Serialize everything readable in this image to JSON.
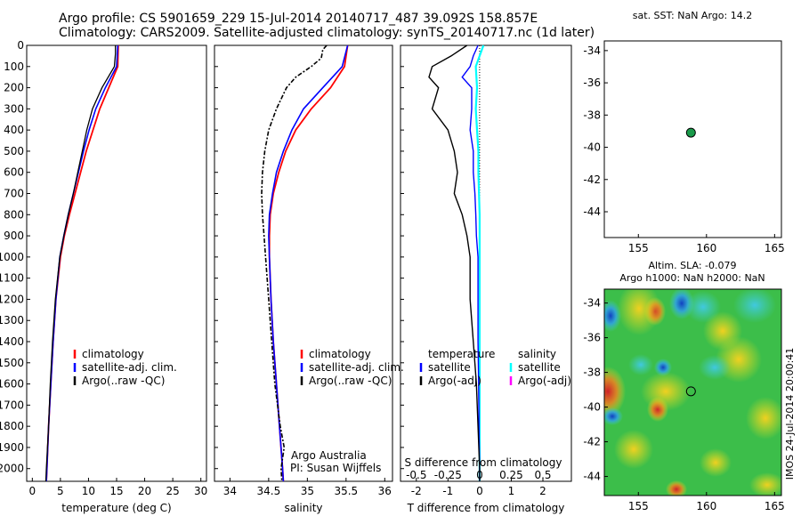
{
  "header": {
    "line1": "Argo profile: CS 5901659_229 15-Jul-2014 20140717_487 39.092S 158.857E",
    "line2": "Climatology: CARS2009. Satellite-adjusted climatology: synTS_20140717.nc (1d later)"
  },
  "colors": {
    "climatology": "#ff0000",
    "satellite": "#0000ff",
    "argo": "#000000",
    "s_satellite": "#00ffff",
    "s_argo": "#ff00ff",
    "marker": "#1a9a4a"
  },
  "chart_data": [
    {
      "type": "line",
      "xlabel": "temperature (deg C)",
      "x_ticks": [
        "0",
        "5",
        "10",
        "15",
        "20",
        "25",
        "30"
      ],
      "xlim": [
        -1,
        31
      ],
      "y_ticks": [
        "0",
        "100",
        "200",
        "300",
        "400",
        "500",
        "600",
        "700",
        "800",
        "900",
        "1000",
        "1100",
        "1200",
        "1300",
        "1400",
        "1500",
        "1600",
        "1700",
        "1800",
        "1900",
        "2000"
      ],
      "ylim": [
        0,
        2060
      ],
      "legend": [
        "climatology",
        "satellite-adj. clim.",
        "Argo(..raw -QC)"
      ],
      "series": [
        {
          "name": "climatology",
          "depth": [
            0,
            100,
            200,
            300,
            400,
            500,
            600,
            700,
            800,
            900,
            1000,
            1200,
            1400,
            1600,
            1800,
            2000,
            2060
          ],
          "values": [
            15.3,
            15.2,
            13.6,
            12.0,
            10.8,
            9.6,
            8.6,
            7.6,
            6.6,
            5.7,
            5.0,
            4.2,
            3.7,
            3.3,
            2.9,
            2.6,
            2.5
          ]
        },
        {
          "name": "satellite-adj. clim.",
          "depth": [
            0,
            100,
            200,
            300,
            400,
            500,
            600,
            700,
            800,
            900,
            1000,
            1200,
            1400,
            1600,
            1800,
            2000,
            2060
          ],
          "values": [
            15.2,
            15.0,
            13.0,
            11.3,
            10.1,
            9.1,
            8.2,
            7.3,
            6.4,
            5.6,
            4.9,
            4.2,
            3.7,
            3.3,
            2.9,
            2.6,
            2.5
          ]
        },
        {
          "name": "Argo(..raw -QC)",
          "depth": [
            0,
            40,
            100,
            200,
            300,
            400,
            500,
            600,
            700,
            800,
            900,
            1000,
            1200,
            1400,
            1600,
            1800,
            2000,
            2060
          ],
          "values": [
            14.8,
            14.8,
            14.6,
            12.4,
            10.7,
            9.7,
            8.9,
            8.1,
            7.3,
            6.4,
            5.6,
            4.9,
            4.1,
            3.6,
            3.2,
            2.9,
            2.5,
            2.4
          ]
        }
      ]
    },
    {
      "type": "line",
      "xlabel": "salinity",
      "x_ticks": [
        "34",
        "34.5",
        "35",
        "35.5",
        "36"
      ],
      "xlim": [
        33.8,
        36.1
      ],
      "ylim": [
        0,
        2060
      ],
      "legend": [
        "climatology",
        "satellite-adj. clim.",
        "Argo(..raw -QC)"
      ],
      "annotation": [
        "Argo Australia",
        "PI: Susan Wijffels"
      ],
      "series": [
        {
          "name": "climatology",
          "depth": [
            0,
            100,
            200,
            300,
            400,
            500,
            600,
            700,
            800,
            900,
            1000,
            1200,
            1400,
            1600,
            1800,
            2000,
            2060
          ],
          "values": [
            35.52,
            35.48,
            35.3,
            35.05,
            34.85,
            34.72,
            34.63,
            34.56,
            34.52,
            34.51,
            34.51,
            34.53,
            34.56,
            34.6,
            34.64,
            34.68,
            34.69
          ]
        },
        {
          "name": "satellite-adj. clim.",
          "depth": [
            0,
            100,
            200,
            300,
            400,
            500,
            600,
            700,
            800,
            900,
            1000,
            1200,
            1400,
            1600,
            1800,
            2000,
            2060
          ],
          "values": [
            35.52,
            35.45,
            35.2,
            34.95,
            34.8,
            34.69,
            34.6,
            34.55,
            34.51,
            34.5,
            34.51,
            34.53,
            34.56,
            34.6,
            34.64,
            34.68,
            34.69
          ]
        },
        {
          "name": "Argo(..raw -QC)",
          "depth": [
            0,
            20,
            60,
            100,
            150,
            200,
            300,
            400,
            500,
            600,
            700,
            800,
            900,
            1000,
            1200,
            1400,
            1600,
            1800,
            1900,
            2000,
            2060
          ],
          "values": [
            35.25,
            35.2,
            35.18,
            35.05,
            34.85,
            34.73,
            34.6,
            34.5,
            34.45,
            34.42,
            34.41,
            34.42,
            34.44,
            34.46,
            34.5,
            34.54,
            34.58,
            34.65,
            34.7,
            34.66,
            34.67
          ]
        }
      ]
    },
    {
      "type": "line",
      "xlabel": "T difference from climatology",
      "xlabel_top": "S difference from climatology",
      "x_ticks": [
        "-2",
        "-1",
        "0",
        "1",
        "2"
      ],
      "x_ticks_top": [
        "-0.5",
        "-0.25",
        "0",
        "0.25",
        "0.5"
      ],
      "xlim": [
        -2.5,
        2.9
      ],
      "ylim": [
        0,
        2060
      ],
      "legend_titles": [
        "temperature",
        "salinity"
      ],
      "legend": [
        "satellite",
        "Argo(-adj)",
        "satellite",
        "Argo(-adj)"
      ],
      "series": [
        {
          "name": "satellite",
          "depth": [
            0,
            50,
            100,
            150,
            200,
            300,
            400,
            500,
            600,
            700,
            800,
            900,
            1000,
            1200,
            1400,
            1600,
            1800,
            2000,
            2060
          ],
          "values": [
            -0.05,
            -0.2,
            -0.3,
            -0.55,
            -0.25,
            -0.25,
            -0.3,
            -0.2,
            -0.2,
            -0.15,
            -0.12,
            -0.1,
            -0.05,
            -0.05,
            -0.05,
            -0.03,
            -0.02,
            0,
            0
          ]
        },
        {
          "name": "Argo(-adj)",
          "depth": [
            0,
            50,
            100,
            150,
            200,
            300,
            400,
            500,
            600,
            700,
            800,
            900,
            1000,
            1200,
            1400,
            1600,
            1800,
            2000,
            2060
          ],
          "values": [
            -0.4,
            -0.9,
            -1.5,
            -1.6,
            -1.3,
            -1.5,
            -1.0,
            -0.8,
            -0.7,
            -0.8,
            -0.55,
            -0.4,
            -0.3,
            -0.3,
            -0.2,
            -0.1,
            -0.05,
            0,
            0
          ]
        },
        {
          "name": "satellite",
          "depth": [
            0,
            50,
            100,
            200,
            300,
            400,
            500,
            600,
            800,
            1000,
            1200,
            1400,
            1600,
            1800,
            2000,
            2060
          ],
          "values": [
            0.03,
            0.0,
            -0.03,
            -0.02,
            -0.03,
            -0.02,
            -0.01,
            -0.01,
            0,
            0,
            0,
            0,
            0,
            0,
            0,
            0
          ]
        }
      ]
    },
    {
      "type": "scatter",
      "title": "sat. SST: NaN Argo: 14.2",
      "x_ticks": [
        "155",
        "160",
        "165"
      ],
      "xlim": [
        152.5,
        165.5
      ],
      "y_ticks": [
        "-34",
        "-36",
        "-38",
        "-40",
        "-42",
        "-44"
      ],
      "ylim": [
        -45.6,
        -33.4
      ],
      "points": [
        {
          "x": 158.857,
          "y": -39.092
        }
      ]
    },
    {
      "type": "heatmap",
      "title": "Altim. SLA: -0.079",
      "subtitle": "Argo h1000: NaN h2000: NaN",
      "x_ticks": [
        "155",
        "160",
        "165"
      ],
      "xlim": [
        152.5,
        165.5
      ],
      "y_ticks": [
        "-34",
        "-36",
        "-38",
        "-40",
        "-42",
        "-44"
      ],
      "ylim": [
        -45,
        -33
      ],
      "points": [
        {
          "x": 158.857,
          "y": -39.092
        }
      ],
      "side_label": "IMOS 24-Jul-2014 20:00:41"
    }
  ]
}
